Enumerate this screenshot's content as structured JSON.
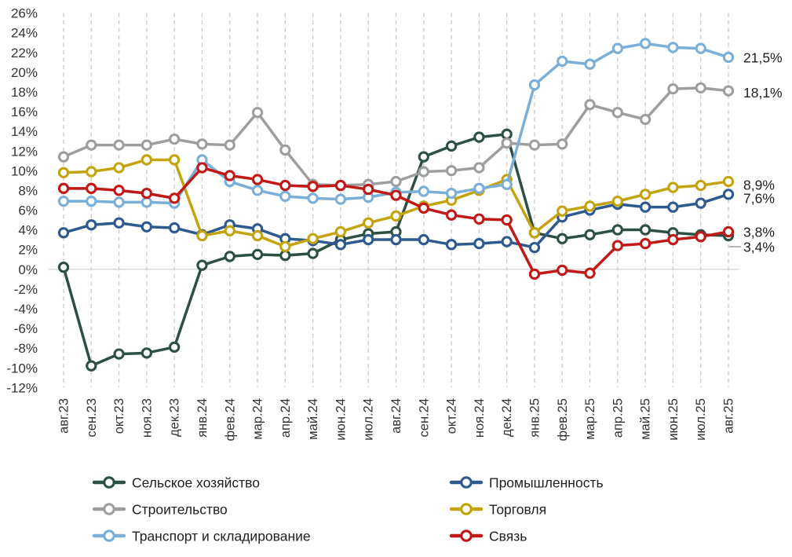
{
  "page": {
    "background": "#ffffff",
    "title": ""
  },
  "chart_data": {
    "type": "line",
    "title": "",
    "xlabel": "",
    "ylabel": "",
    "x_labels": [
      "авг.23",
      "сен.23",
      "окт.23",
      "ноя.23",
      "дек.23",
      "янв.24",
      "фев.24",
      "мар.24",
      "апр.24",
      "май.24",
      "июн.24",
      "июл.24",
      "авг.24",
      "сен.24",
      "окт.24",
      "ноя.24",
      "дек.24",
      "янв.25",
      "фев.25",
      "мар.25",
      "апр.25",
      "май.25",
      "июн.25",
      "июл.25",
      "авг.25"
    ],
    "y_axis": {
      "min": -12,
      "max": 26,
      "step": 2,
      "suffix": "%",
      "ticks": [
        "26%",
        "24%",
        "22%",
        "20%",
        "18%",
        "16%",
        "14%",
        "12%",
        "10%",
        "8%",
        "6%",
        "4%",
        "2%",
        "0%",
        "-2%",
        "-4%",
        "-6%",
        "-8%",
        "-10%",
        "-12%"
      ]
    },
    "grid": {
      "vertical_dashed": true,
      "horizontal_lines": "zero-only"
    },
    "marker_style": {
      "shape": "circle",
      "fill": "#ffffff"
    },
    "series": [
      {
        "key": "agriculture",
        "name": "Сельское хозяйство",
        "color": "#2E5043",
        "values": [
          0.2,
          -9.8,
          -8.6,
          -8.5,
          -7.9,
          0.4,
          1.3,
          1.5,
          1.4,
          1.6,
          3.0,
          3.6,
          3.8,
          11.4,
          12.5,
          13.4,
          13.7,
          3.7,
          3.1,
          3.5,
          4.0,
          4.0,
          3.7,
          3.5,
          3.4
        ]
      },
      {
        "key": "industry",
        "name": "Промышленность",
        "color": "#2E5A90",
        "values": [
          3.7,
          4.5,
          4.7,
          4.3,
          4.2,
          3.5,
          4.5,
          4.1,
          3.1,
          2.9,
          2.5,
          3.0,
          3.0,
          3.0,
          2.5,
          2.6,
          2.8,
          2.2,
          5.3,
          6.0,
          6.6,
          6.3,
          6.3,
          6.7,
          7.6
        ]
      },
      {
        "key": "construction",
        "name": "Строительство",
        "color": "#9E9E9D",
        "values": [
          11.4,
          12.6,
          12.6,
          12.6,
          13.2,
          12.7,
          12.6,
          15.9,
          12.1,
          8.6,
          8.5,
          8.6,
          8.9,
          9.9,
          10.0,
          10.3,
          12.8,
          12.6,
          12.7,
          16.7,
          15.9,
          15.2,
          18.3,
          18.4,
          18.1
        ]
      },
      {
        "key": "trade",
        "name": "Торговля",
        "color": "#C4A40D",
        "values": [
          9.8,
          9.9,
          10.3,
          11.1,
          11.1,
          3.4,
          3.9,
          3.4,
          2.3,
          3.1,
          3.8,
          4.7,
          5.4,
          6.4,
          7.0,
          8.0,
          9.1,
          3.7,
          5.9,
          6.4,
          6.9,
          7.6,
          8.3,
          8.5,
          8.9
        ]
      },
      {
        "key": "transport",
        "name": "Транспорт и складирование",
        "color": "#7BAFD8",
        "values": [
          6.9,
          6.9,
          6.8,
          6.8,
          6.7,
          11.1,
          8.9,
          8.0,
          7.4,
          7.2,
          7.1,
          7.3,
          7.8,
          7.9,
          7.7,
          8.2,
          8.6,
          18.7,
          21.1,
          20.8,
          22.4,
          22.9,
          22.5,
          22.4,
          21.5
        ]
      },
      {
        "key": "communications",
        "name": "Связь",
        "color": "#C11818",
        "values": [
          8.2,
          8.2,
          8.0,
          7.7,
          7.2,
          10.3,
          9.5,
          9.1,
          8.5,
          8.4,
          8.5,
          8.1,
          7.5,
          6.2,
          5.5,
          5.1,
          5.0,
          -0.5,
          -0.1,
          -0.4,
          2.4,
          2.6,
          3.0,
          3.3,
          3.8
        ]
      }
    ],
    "end_labels": [
      {
        "text": "21,5%",
        "series_key": "transport",
        "value": 21.5,
        "dy": 0,
        "leader": false
      },
      {
        "text": "18,1%",
        "series_key": "construction",
        "value": 18.1,
        "dy": 2,
        "leader": false
      },
      {
        "text": "8,9%",
        "series_key": "trade",
        "value": 8.9,
        "dy": 4,
        "leader": false
      },
      {
        "text": "7,6%",
        "series_key": "industry",
        "value": 7.6,
        "dy": 5,
        "leader": false
      },
      {
        "text": "3,8%",
        "series_key": "communications",
        "value": 3.8,
        "dy": 0,
        "leader": false
      },
      {
        "text": "3,4%",
        "series_key": "agriculture",
        "value": 3.4,
        "dy": 14,
        "leader": true
      }
    ],
    "legend": {
      "position": "bottom",
      "left_column": [
        "agriculture",
        "construction",
        "transport"
      ],
      "right_column": [
        "industry",
        "trade",
        "communications"
      ]
    },
    "colors": {
      "grid_dash": "#C9C9C9",
      "zero_line": "#D9D9D9",
      "axis_text": "#333333",
      "label_text": "#1F1F1F",
      "leader_line": "#9A9A9A"
    }
  }
}
